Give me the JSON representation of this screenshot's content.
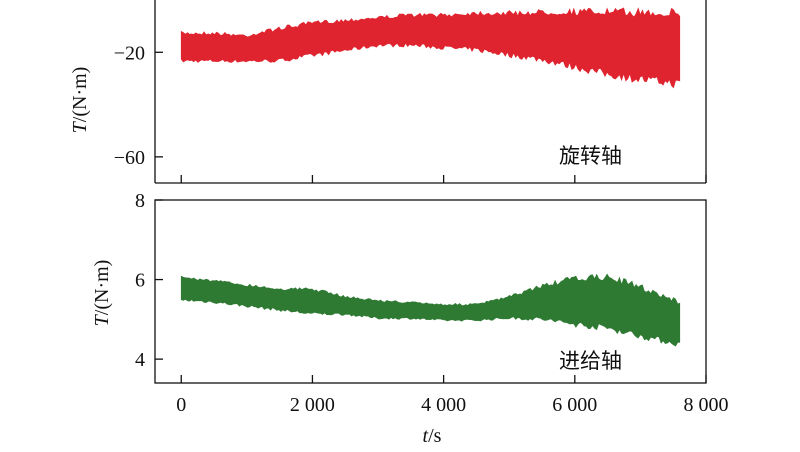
{
  "chart_data": [
    {
      "type": "area",
      "panel": "top",
      "ylabel_italic": "T",
      "ylabel_unit": "/(N·m)",
      "yticks": [
        -20,
        -60
      ],
      "ytick_labels": [
        "−20",
        "−60"
      ],
      "ylim": [
        -70,
        0
      ],
      "xlim": [
        -400,
        8000
      ],
      "series": [
        {
          "name": "旋转轴",
          "color": "#e0242f",
          "x": [
            0,
            500,
            1000,
            1500,
            2000,
            2500,
            3000,
            3500,
            4000,
            4500,
            5000,
            5500,
            6000,
            6500,
            7000,
            7600
          ],
          "upper": [
            -12,
            -12,
            -13,
            -10,
            -8,
            -7,
            -6,
            -5,
            -5,
            -4,
            -4,
            -3.5,
            -3,
            -3,
            -3,
            -3
          ],
          "lower": [
            -24,
            -24,
            -24,
            -24,
            -22,
            -20,
            -18,
            -18,
            -19,
            -20,
            -22,
            -24,
            -27,
            -30,
            -32,
            -34
          ]
        }
      ],
      "grid": false
    },
    {
      "type": "area",
      "panel": "bottom",
      "ylabel_italic": "T",
      "ylabel_unit": "/(N·m)",
      "yticks": [
        4,
        6,
        8
      ],
      "ytick_labels": [
        "4",
        "6",
        "8"
      ],
      "ylim": [
        3.4,
        8
      ],
      "xlim": [
        -400,
        8000
      ],
      "xticks": [
        0,
        2000,
        4000,
        6000,
        8000
      ],
      "xtick_labels": [
        "0",
        "2 000",
        "4 000",
        "6 000",
        "8 000"
      ],
      "xlabel_italic": "t",
      "xlabel_unit": "/s",
      "series": [
        {
          "name": "进给轴",
          "color": "#2f7a33",
          "x": [
            0,
            500,
            1000,
            1500,
            2000,
            2500,
            3000,
            3500,
            4000,
            4500,
            5000,
            5500,
            6000,
            6500,
            7000,
            7600
          ],
          "upper": [
            6.1,
            6.0,
            5.9,
            5.8,
            5.8,
            5.6,
            5.5,
            5.45,
            5.4,
            5.4,
            5.6,
            5.9,
            6.1,
            6.15,
            5.9,
            5.5
          ],
          "lower": [
            5.45,
            5.4,
            5.3,
            5.2,
            5.1,
            5.1,
            5.0,
            5.0,
            4.95,
            4.95,
            5.0,
            4.95,
            4.8,
            4.7,
            4.5,
            4.3
          ]
        }
      ],
      "grid": false
    }
  ]
}
